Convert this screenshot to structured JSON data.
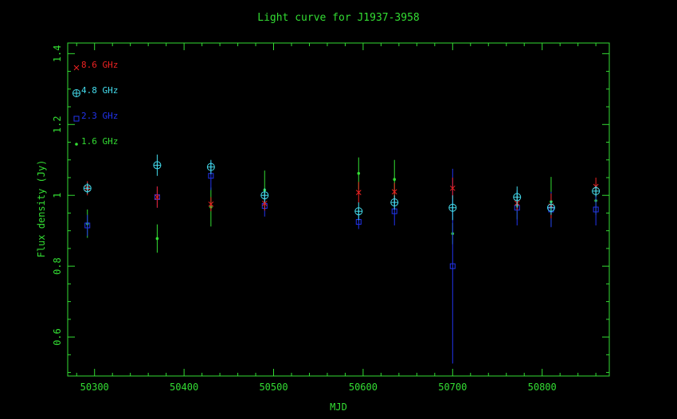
{
  "chart_data": {
    "type": "scatter",
    "title": "Light curve for J1937-3958",
    "xlabel": "MJD",
    "ylabel": "Flux density (Jy)",
    "xlim": [
      50270,
      50875
    ],
    "ylim": [
      0.49,
      1.43
    ],
    "xticks": [
      50300,
      50400,
      50500,
      50600,
      50700,
      50800
    ],
    "yticks": [
      0.6,
      0.8,
      1,
      1.2,
      1.4
    ],
    "axis_color": "#33dd33",
    "title_color": "#33dd33",
    "legend_position": "top-left",
    "series": [
      {
        "name": "8.6 GHz",
        "color": "#ee2222",
        "marker": "cross",
        "points": [
          {
            "x": 50292,
            "y": 1.02,
            "err": 0.02
          },
          {
            "x": 50370,
            "y": 0.995,
            "err": 0.03
          },
          {
            "x": 50430,
            "y": 0.975,
            "err": 0.02
          },
          {
            "x": 50490,
            "y": 0.977,
            "err": 0.02
          },
          {
            "x": 50595,
            "y": 1.008,
            "err": 0.03
          },
          {
            "x": 50635,
            "y": 1.01,
            "err": 0.025
          },
          {
            "x": 50700,
            "y": 1.02,
            "err": 0.03
          },
          {
            "x": 50772,
            "y": 0.978,
            "err": 0.02
          },
          {
            "x": 50810,
            "y": 0.97,
            "err": 0.035
          },
          {
            "x": 50860,
            "y": 1.025,
            "err": 0.025
          }
        ]
      },
      {
        "name": "4.8 GHz",
        "color": "#44ddee",
        "marker": "circle-plus",
        "points": [
          {
            "x": 50292,
            "y": 1.02,
            "err": 0.015
          },
          {
            "x": 50370,
            "y": 1.085,
            "err": 0.03
          },
          {
            "x": 50430,
            "y": 1.08,
            "err": 0.02
          },
          {
            "x": 50490,
            "y": 1.0,
            "err": 0.02
          },
          {
            "x": 50595,
            "y": 0.955,
            "err": 0.025
          },
          {
            "x": 50635,
            "y": 0.98,
            "err": 0.02
          },
          {
            "x": 50700,
            "y": 0.965,
            "err": 0.035
          },
          {
            "x": 50772,
            "y": 0.995,
            "err": 0.03
          },
          {
            "x": 50810,
            "y": 0.965,
            "err": 0.02
          },
          {
            "x": 50860,
            "y": 1.012,
            "err": 0.015
          }
        ]
      },
      {
        "name": "2.3 GHz",
        "color": "#2233ee",
        "marker": "square",
        "points": [
          {
            "x": 50292,
            "y": 0.915,
            "err": 0.03
          },
          {
            "x": 50370,
            "y": 0.995,
            "err": 0.03
          },
          {
            "x": 50430,
            "y": 1.055,
            "err": 0.04
          },
          {
            "x": 50490,
            "y": 0.97,
            "err": 0.03
          },
          {
            "x": 50595,
            "y": 0.925,
            "err": 0.02
          },
          {
            "x": 50635,
            "y": 0.955,
            "err": 0.04
          },
          {
            "x": 50700,
            "y": 0.8,
            "err": 0.275
          },
          {
            "x": 50772,
            "y": 0.965,
            "err": 0.05
          },
          {
            "x": 50810,
            "y": 0.96,
            "err": 0.05
          },
          {
            "x": 50860,
            "y": 0.96,
            "err": 0.045
          }
        ]
      },
      {
        "name": "1.6 GHz",
        "color": "#33dd33",
        "marker": "dot",
        "points": [
          {
            "x": 50292,
            "y": 0.92,
            "err": 0.04
          },
          {
            "x": 50370,
            "y": 0.878,
            "err": 0.04
          },
          {
            "x": 50430,
            "y": 0.967,
            "err": 0.055
          },
          {
            "x": 50490,
            "y": 1.015,
            "err": 0.055
          },
          {
            "x": 50595,
            "y": 1.062,
            "err": 0.045
          },
          {
            "x": 50635,
            "y": 1.045,
            "err": 0.055
          },
          {
            "x": 50700,
            "y": 0.892,
            "err": 0.03
          },
          {
            "x": 50772,
            "y": 0.972,
            "err": 0.04
          },
          {
            "x": 50810,
            "y": 0.982,
            "err": 0.07
          },
          {
            "x": 50860,
            "y": 0.985,
            "err": 0.04
          }
        ]
      }
    ]
  }
}
